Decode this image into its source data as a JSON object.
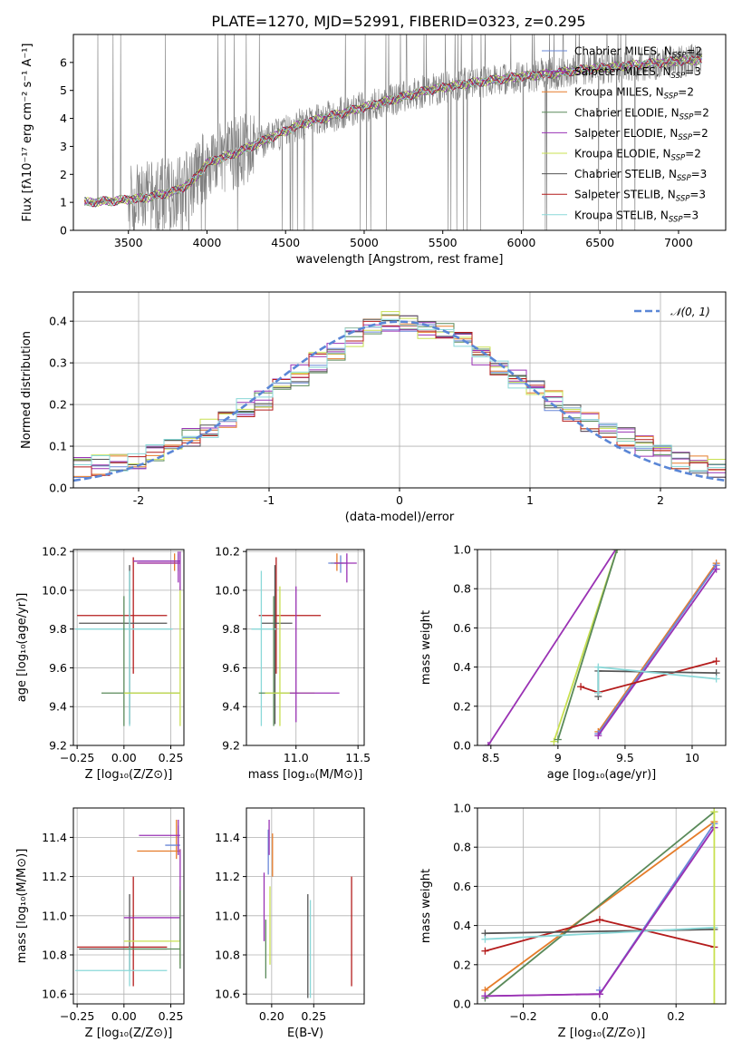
{
  "title": "PLATE=1270, MJD=52991, FIBERID=0323, z=0.295",
  "colors": {
    "Chabrier MILES": "#6a88d8",
    "Salpeter MILES": "#9a32b4",
    "Kroupa MILES": "#e57c2a",
    "Chabrier ELODIE": "#5a8a5a",
    "Salpeter ELODIE": "#9a32b4",
    "Kroupa ELODIE": "#c8e050",
    "Chabrier STELIB": "#555555",
    "Salpeter STELIB": "#b41c1c",
    "Kroupa STELIB": "#8ad8d8",
    "data": "#808080",
    "gaussian": "#5a86d6"
  },
  "legend_spectrum": [
    {
      "model": "Chabrier MILES",
      "text": "Chabrier MILES, N",
      "sub": "SSP",
      "suffix": "=2"
    },
    {
      "model": "Salpeter MILES",
      "text": "Salpeter MILES, N",
      "sub": "SSP",
      "suffix": "=3"
    },
    {
      "model": "Kroupa MILES",
      "text": "Kroupa MILES, N",
      "sub": "SSP",
      "suffix": "=2"
    },
    {
      "model": "Chabrier ELODIE",
      "text": "Chabrier ELODIE, N",
      "sub": "SSP",
      "suffix": "=2"
    },
    {
      "model": "Salpeter ELODIE",
      "text": "Salpeter ELODIE, N",
      "sub": "SSP",
      "suffix": "=2"
    },
    {
      "model": "Kroupa ELODIE",
      "text": "Kroupa ELODIE, N",
      "sub": "SSP",
      "suffix": "=2"
    },
    {
      "model": "Chabrier STELIB",
      "text": "Chabrier STELIB, N",
      "sub": "SSP",
      "suffix": "=3"
    },
    {
      "model": "Salpeter STELIB",
      "text": "Salpeter STELIB, N",
      "sub": "SSP",
      "suffix": "=3"
    },
    {
      "model": "Kroupa STELIB",
      "text": "Kroupa STELIB, N",
      "sub": "SSP",
      "suffix": "=3"
    }
  ],
  "chart_data": [
    {
      "type": "line",
      "id": "spectrum",
      "xlabel": "wavelength [Angstrom, rest frame]",
      "ylabel": "Flux [fλ10⁻¹⁷ erg cm⁻² s⁻¹ A⁻¹]",
      "xlim": [
        3150,
        7300
      ],
      "ylim": [
        0,
        7
      ],
      "xticks": [
        3500,
        4000,
        4500,
        5000,
        5500,
        6000,
        6500,
        7000
      ],
      "yticks": [
        0,
        1,
        2,
        3,
        4,
        5,
        6
      ],
      "grid": false,
      "legend_position": "top-right",
      "continuum": {
        "x": [
          3220,
          3400,
          3600,
          3800,
          3900,
          4000,
          4100,
          4200,
          4400,
          4600,
          4800,
          5000,
          5200,
          5400,
          5600,
          5800,
          6000,
          6200,
          6400,
          6600,
          6800,
          7000,
          7150
        ],
        "y": [
          1.0,
          1.05,
          1.15,
          1.4,
          1.7,
          2.4,
          2.6,
          2.8,
          3.3,
          3.8,
          4.1,
          4.4,
          4.7,
          5.0,
          5.2,
          5.35,
          5.5,
          5.6,
          5.75,
          5.85,
          5.95,
          6.05,
          6.1
        ]
      }
    },
    {
      "type": "histogram",
      "id": "residuals",
      "xlabel": "(data-model)/error",
      "ylabel": "Normed distribution",
      "xlim": [
        -2.5,
        2.5
      ],
      "ylim": [
        0,
        0.47
      ],
      "xticks": [
        -2,
        -1,
        0,
        1,
        2
      ],
      "yticks": [
        0.0,
        0.1,
        0.2,
        0.3,
        0.4
      ],
      "grid": true,
      "legend_position": "top-right",
      "gaussian_label": "𝒩(0, 1)",
      "envelope": [
        0.05,
        0.055,
        0.06,
        0.07,
        0.085,
        0.1,
        0.12,
        0.14,
        0.165,
        0.19,
        0.21,
        0.24,
        0.27,
        0.3,
        0.33,
        0.36,
        0.38,
        0.4,
        0.39,
        0.38,
        0.37,
        0.35,
        0.32,
        0.29,
        0.26,
        0.24,
        0.21,
        0.18,
        0.16,
        0.14,
        0.12,
        0.1,
        0.08,
        0.07,
        0.06,
        0.05
      ],
      "bin_start": -2.5,
      "bin_width": 0.1389
    },
    {
      "type": "errorbar",
      "id": "age_vs_Z",
      "xlabel": "Z [log₁₀(Z/Z⊙)]",
      "ylabel": "age  [log₁₀(age/yr)]",
      "xlim": [
        -0.27,
        0.32
      ],
      "ylim": [
        9.2,
        10.21
      ],
      "xticks": [
        -0.25,
        0.0,
        0.25
      ],
      "xticklabels": [
        "−0.25",
        "0.00",
        "0.25"
      ],
      "yticks": [
        9.2,
        9.4,
        9.6,
        9.8,
        10.0,
        10.2
      ],
      "grid": true,
      "points": [
        {
          "model": "Salpeter STELIB",
          "x": 0.05,
          "xerr": [
            0.3,
            0.18
          ],
          "y": 9.87,
          "yerr": [
            0.3,
            0.3
          ]
        },
        {
          "model": "Chabrier STELIB",
          "x": 0.03,
          "xerr": [
            0.27,
            0.2
          ],
          "y": 9.83,
          "yerr": [
            0.52,
            0.3
          ]
        },
        {
          "model": "Kroupa STELIB",
          "x": 0.03,
          "xerr": [
            0.29,
            0.23
          ],
          "y": 9.8,
          "yerr": [
            0.5,
            0.3
          ]
        },
        {
          "model": "Chabrier ELODIE",
          "x": 0.0,
          "xerr": [
            0.12,
            0.3
          ],
          "y": 9.47,
          "yerr": [
            0.17,
            0.5
          ]
        },
        {
          "model": "Kroupa ELODIE",
          "x": 0.3,
          "xerr": [
            0.3,
            0.0
          ],
          "y": 9.47,
          "yerr": [
            0.17,
            0.55
          ]
        },
        {
          "model": "Kroupa MILES",
          "x": 0.27,
          "xerr": [
            0.2,
            0.02
          ],
          "y": 10.14,
          "yerr": [
            0.04,
            0.05
          ]
        },
        {
          "model": "Chabrier MILES",
          "x": 0.29,
          "xerr": [
            0.21,
            0.01
          ],
          "y": 10.15,
          "yerr": [
            0.05,
            0.04
          ]
        },
        {
          "model": "Salpeter MILES",
          "x": 0.3,
          "xerr": [
            0.25,
            0.0
          ],
          "y": 10.15,
          "yerr": [
            0.15,
            0.05
          ]
        },
        {
          "model": "Salpeter ELODIE",
          "x": 0.29,
          "xerr": [
            0.22,
            0.01
          ],
          "y": 10.14,
          "yerr": [
            0.1,
            0.06
          ]
        }
      ]
    },
    {
      "type": "errorbar",
      "id": "age_vs_mass",
      "xlabel": "mass [log₁₀(M/M⊙)]",
      "ylabel": "",
      "xlim": [
        10.6,
        11.55
      ],
      "ylim": [
        9.2,
        10.21
      ],
      "xticks": [
        11.0,
        11.5
      ],
      "xticklabels": [
        "11.0",
        "11.5"
      ],
      "yticks": [
        9.2,
        9.4,
        9.6,
        9.8,
        10.0,
        10.2
      ],
      "grid": true,
      "points": [
        {
          "model": "Salpeter STELIB",
          "x": 10.84,
          "xerr": [
            0.14,
            0.36
          ],
          "y": 9.87,
          "yerr": [
            0.3,
            0.3
          ]
        },
        {
          "model": "Chabrier STELIB",
          "x": 10.83,
          "xerr": [
            0.11,
            0.14
          ],
          "y": 9.83,
          "yerr": [
            0.52,
            0.3
          ]
        },
        {
          "model": "Kroupa STELIB",
          "x": 10.72,
          "xerr": [
            0.08,
            0.12
          ],
          "y": 9.8,
          "yerr": [
            0.5,
            0.3
          ]
        },
        {
          "model": "Chabrier ELODIE",
          "x": 10.82,
          "xerr": [
            0.12,
            0.2
          ],
          "y": 9.47,
          "yerr": [
            0.17,
            0.5
          ]
        },
        {
          "model": "Kroupa ELODIE",
          "x": 10.87,
          "xerr": [
            0.12,
            0.28
          ],
          "y": 9.47,
          "yerr": [
            0.17,
            0.55
          ]
        },
        {
          "model": "Salpeter ELODIE",
          "x": 11.0,
          "xerr": [
            0.05,
            0.35
          ],
          "y": 9.47,
          "yerr": [
            0.15,
            0.55
          ]
        },
        {
          "model": "Kroupa MILES",
          "x": 11.33,
          "xerr": [
            0.05,
            0.05
          ],
          "y": 10.14,
          "yerr": [
            0.04,
            0.05
          ]
        },
        {
          "model": "Chabrier MILES",
          "x": 11.36,
          "xerr": [
            0.1,
            0.05
          ],
          "y": 10.14,
          "yerr": [
            0.05,
            0.04
          ]
        },
        {
          "model": "Salpeter MILES",
          "x": 11.41,
          "xerr": [
            0.1,
            0.08
          ],
          "y": 10.14,
          "yerr": [
            0.1,
            0.05
          ]
        }
      ]
    },
    {
      "type": "line",
      "id": "weight_vs_age",
      "xlabel": "age  [log₁₀(age/yr)]",
      "ylabel": "mass weight",
      "xlim": [
        8.4,
        10.25
      ],
      "ylim": [
        0,
        1.0
      ],
      "xticks": [
        8.5,
        9.0,
        9.5,
        10.0
      ],
      "yticks": [
        0.0,
        0.2,
        0.4,
        0.6,
        0.8,
        1.0
      ],
      "grid": true,
      "series": [
        {
          "model": "Salpeter MILES",
          "x": [
            8.48,
            9.43
          ],
          "y": [
            0.0,
            1.0
          ]
        },
        {
          "model": "Kroupa ELODIE",
          "x": [
            8.97,
            9.44
          ],
          "y": [
            0.02,
            1.0
          ]
        },
        {
          "model": "Chabrier ELODIE",
          "x": [
            9.0,
            9.44
          ],
          "y": [
            0.03,
            1.0
          ]
        },
        {
          "model": "Kroupa MILES",
          "x": [
            9.3,
            10.18
          ],
          "y": [
            0.07,
            0.93
          ]
        },
        {
          "model": "Chabrier MILES",
          "x": [
            9.3,
            10.18
          ],
          "y": [
            0.06,
            0.92
          ]
        },
        {
          "model": "Salpeter ELODIE",
          "x": [
            9.3,
            10.18
          ],
          "y": [
            0.05,
            0.9
          ]
        },
        {
          "model": "Salpeter STELIB",
          "x": [
            9.17,
            9.3,
            10.18
          ],
          "y": [
            0.3,
            0.27,
            0.43
          ]
        },
        {
          "model": "Chabrier STELIB",
          "x": [
            9.3,
            9.3,
            10.18
          ],
          "y": [
            0.25,
            0.38,
            0.37
          ]
        },
        {
          "model": "Kroupa STELIB",
          "x": [
            9.3,
            9.3,
            10.18
          ],
          "y": [
            0.27,
            0.4,
            0.34
          ]
        }
      ]
    },
    {
      "type": "errorbar",
      "id": "mass_vs_Z",
      "xlabel": "Z [log₁₀(Z/Z⊙)]",
      "ylabel": "mass [log₁₀(M/M⊙)]",
      "xlim": [
        -0.27,
        0.32
      ],
      "ylim": [
        10.55,
        11.55
      ],
      "xticks": [
        -0.25,
        0.0,
        0.25
      ],
      "xticklabels": [
        "−0.25",
        "0.00",
        "0.25"
      ],
      "yticks": [
        10.6,
        10.8,
        11.0,
        11.2,
        11.4
      ],
      "grid": true,
      "points": [
        {
          "model": "Salpeter STELIB",
          "x": 0.05,
          "xerr": [
            0.3,
            0.18
          ],
          "y": 10.84,
          "yerr": [
            0.2,
            0.36
          ]
        },
        {
          "model": "Chabrier STELIB",
          "x": 0.03,
          "xerr": [
            0.27,
            0.2
          ],
          "y": 10.83,
          "yerr": [
            0.11,
            0.28
          ]
        },
        {
          "model": "Kroupa STELIB",
          "x": 0.03,
          "xerr": [
            0.29,
            0.2
          ],
          "y": 10.72,
          "yerr": [
            0.08,
            0.12
          ]
        },
        {
          "model": "Kroupa ELODIE",
          "x": 0.3,
          "xerr": [
            0.3,
            0.0
          ],
          "y": 10.87,
          "yerr": [
            0.12,
            0.28
          ]
        },
        {
          "model": "Salpeter ELODIE",
          "x": 0.3,
          "xerr": [
            0.3,
            0.0
          ],
          "y": 10.99,
          "yerr": [
            0.12,
            0.35
          ]
        },
        {
          "model": "Kroupa MILES",
          "x": 0.28,
          "xerr": [
            0.21,
            0.02
          ],
          "y": 11.33,
          "yerr": [
            0.04,
            0.16
          ]
        },
        {
          "model": "Chabrier MILES",
          "x": 0.29,
          "xerr": [
            0.07,
            0.01
          ],
          "y": 11.36,
          "yerr": [
            0.05,
            0.1
          ]
        },
        {
          "model": "Salpeter MILES",
          "x": 0.29,
          "xerr": [
            0.21,
            0.01
          ],
          "y": 11.41,
          "yerr": [
            0.1,
            0.08
          ]
        },
        {
          "model": "Chabrier ELODIE",
          "x": 0.3,
          "xerr": [
            0.3,
            0.0
          ],
          "y": 10.83,
          "yerr": [
            0.1,
            0.3
          ]
        }
      ]
    },
    {
      "type": "errorbar",
      "id": "mass_vs_ebv",
      "xlabel": "E(B-V)",
      "ylabel": "",
      "xlim": [
        0.17,
        0.31
      ],
      "ylim": [
        10.55,
        11.55
      ],
      "xticks": [
        0.2,
        0.25
      ],
      "xticklabels": [
        "0.20",
        "0.25"
      ],
      "yticks": [
        10.6,
        10.8,
        11.0,
        11.2,
        11.4
      ],
      "grid": true,
      "points": [
        {
          "model": "Salpeter STELIB",
          "x": 0.295,
          "xerr": [
            0,
            0
          ],
          "y": 10.84,
          "yerr": [
            0.2,
            0.36
          ]
        },
        {
          "model": "Chabrier STELIB",
          "x": 0.243,
          "xerr": [
            0,
            0
          ],
          "y": 10.83,
          "yerr": [
            0.25,
            0.28
          ]
        },
        {
          "model": "Kroupa STELIB",
          "x": 0.246,
          "xerr": [
            0,
            0
          ],
          "y": 10.83,
          "yerr": [
            0.25,
            0.25
          ]
        },
        {
          "model": "Chabrier ELODIE",
          "x": 0.193,
          "xerr": [
            0,
            0
          ],
          "y": 10.83,
          "yerr": [
            0.15,
            0.15
          ]
        },
        {
          "model": "Kroupa ELODIE",
          "x": 0.198,
          "xerr": [
            0,
            0
          ],
          "y": 10.87,
          "yerr": [
            0.12,
            0.28
          ]
        },
        {
          "model": "Salpeter ELODIE",
          "x": 0.191,
          "xerr": [
            0,
            0
          ],
          "y": 11.0,
          "yerr": [
            0.13,
            0.22
          ]
        },
        {
          "model": "Kroupa MILES",
          "x": 0.201,
          "xerr": [
            0,
            0
          ],
          "y": 11.33,
          "yerr": [
            0.13,
            0.09
          ]
        },
        {
          "model": "Chabrier MILES",
          "x": 0.196,
          "xerr": [
            0,
            0
          ],
          "y": 11.36,
          "yerr": [
            0.15,
            0.08
          ]
        },
        {
          "model": "Salpeter MILES",
          "x": 0.197,
          "xerr": [
            0,
            0
          ],
          "y": 11.41,
          "yerr": [
            0.1,
            0.08
          ]
        }
      ]
    },
    {
      "type": "line",
      "id": "weight_vs_Z",
      "xlabel": "Z [log₁₀(Z/Z⊙)]",
      "ylabel": "mass weight",
      "xlim": [
        -0.32,
        0.33
      ],
      "ylim": [
        0,
        1.0
      ],
      "xticks": [
        -0.2,
        0.0,
        0.2
      ],
      "xticklabels": [
        "−0.2",
        "0.0",
        "0.2"
      ],
      "yticks": [
        0.0,
        0.2,
        0.4,
        0.6,
        0.8,
        1.0
      ],
      "grid": true,
      "series": [
        {
          "model": "Kroupa MILES",
          "x": [
            -0.3,
            0.3
          ],
          "y": [
            0.07,
            0.93
          ]
        },
        {
          "model": "Chabrier ELODIE",
          "x": [
            -0.3,
            0.3
          ],
          "y": [
            0.03,
            0.98
          ]
        },
        {
          "model": "Salpeter STELIB",
          "x": [
            -0.3,
            0.0,
            0.3
          ],
          "y": [
            0.27,
            0.43,
            0.29
          ]
        },
        {
          "model": "Chabrier STELIB",
          "x": [
            -0.3,
            0.3
          ],
          "y": [
            0.36,
            0.38
          ]
        },
        {
          "model": "Kroupa STELIB",
          "x": [
            -0.3,
            0.3
          ],
          "y": [
            0.33,
            0.39
          ]
        },
        {
          "model": "Chabrier MILES",
          "x": [
            0.0,
            0.0,
            0.3
          ],
          "y": [
            0.07,
            0.05,
            0.92
          ]
        },
        {
          "model": "Salpeter MILES",
          "x": [
            -0.3,
            0.0,
            0.3
          ],
          "y": [
            0.04,
            0.05,
            0.9
          ]
        },
        {
          "model": "Salpeter ELODIE",
          "x": [
            -0.3,
            0.0,
            0.3
          ],
          "y": [
            0.04,
            0.05,
            0.9
          ]
        },
        {
          "model": "Kroupa ELODIE",
          "x": [
            0.3,
            0.3
          ],
          "y": [
            0.0,
            0.98
          ]
        }
      ]
    }
  ]
}
